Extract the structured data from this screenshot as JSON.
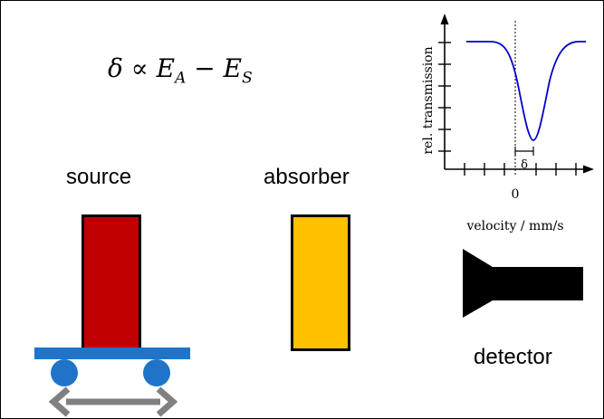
{
  "equation": {
    "lhs": "δ",
    "relation": "∝",
    "term1": "E",
    "term1_sub": "A",
    "minus": "−",
    "term2": "E",
    "term2_sub": "S"
  },
  "labels": {
    "source": "source",
    "absorber": "absorber",
    "detector": "detector"
  },
  "colors": {
    "source": "#c00000",
    "absorber": "#ffc000",
    "stage": "#1f74c9",
    "arrow": "#808080",
    "curve": "#0000cc"
  },
  "icons": {
    "motion": "double-arrow-horizontal",
    "detector": "detector-funnel"
  },
  "spectrum_plot": {
    "ylabel": "rel. transmission",
    "xlabel": "velocity / mm/s",
    "x_tick_label": "0",
    "shift_label": "δ"
  }
}
